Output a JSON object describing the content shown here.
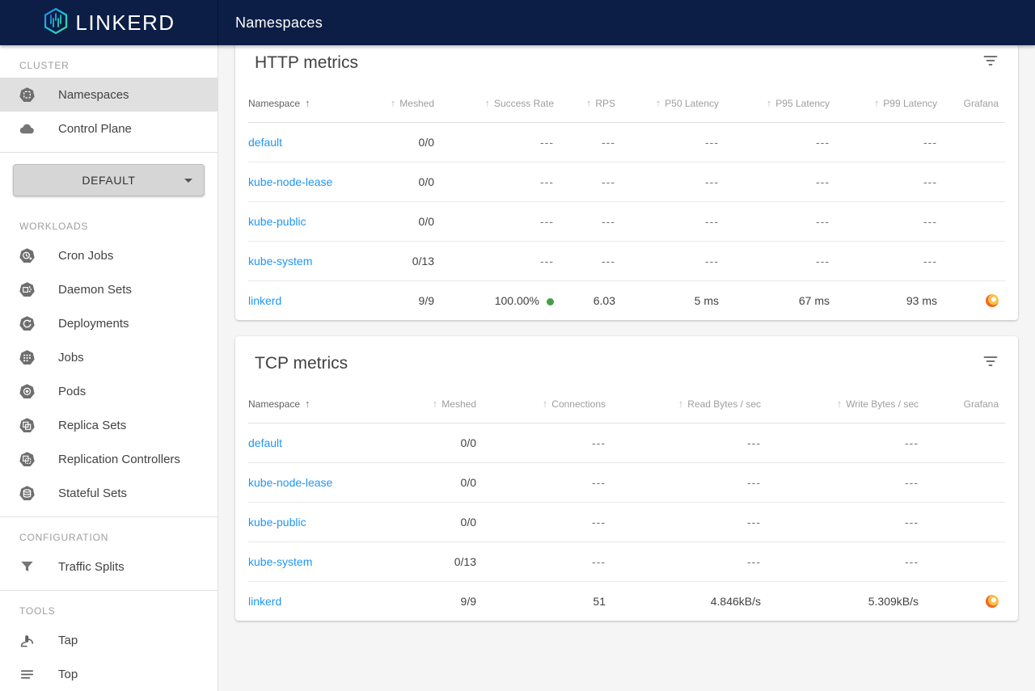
{
  "brand": {
    "name": "LINKERD",
    "logo_icon": "linkerd-logo-icon"
  },
  "navbar": {
    "title": "Namespaces"
  },
  "sidebar": {
    "sections": [
      {
        "label": "CLUSTER",
        "items": [
          {
            "label": "Namespaces",
            "icon": "namespaces-icon",
            "selected": true
          },
          {
            "label": "Control Plane",
            "icon": "control-plane-icon",
            "selected": false
          }
        ]
      },
      {
        "label": "WORKLOADS",
        "items": [
          {
            "label": "Cron Jobs",
            "icon": "cron-jobs-icon",
            "selected": false
          },
          {
            "label": "Daemon Sets",
            "icon": "daemon-sets-icon",
            "selected": false
          },
          {
            "label": "Deployments",
            "icon": "deployments-icon",
            "selected": false
          },
          {
            "label": "Jobs",
            "icon": "jobs-icon",
            "selected": false
          },
          {
            "label": "Pods",
            "icon": "pods-icon",
            "selected": false
          },
          {
            "label": "Replica Sets",
            "icon": "replica-sets-icon",
            "selected": false
          },
          {
            "label": "Replication Controllers",
            "icon": "replication-controllers-icon",
            "selected": false
          },
          {
            "label": "Stateful Sets",
            "icon": "stateful-sets-icon",
            "selected": false
          }
        ]
      },
      {
        "label": "CONFIGURATION",
        "items": [
          {
            "label": "Traffic Splits",
            "icon": "traffic-splits-icon",
            "selected": false
          }
        ]
      },
      {
        "label": "TOOLS",
        "items": [
          {
            "label": "Tap",
            "icon": "tap-icon",
            "selected": false
          },
          {
            "label": "Top",
            "icon": "top-icon",
            "selected": false
          }
        ]
      }
    ],
    "namespace_selector": {
      "value": "DEFAULT"
    }
  },
  "tables": [
    {
      "id": "http",
      "title": "HTTP metrics",
      "columns": [
        {
          "key": "namespace",
          "label": "Namespace",
          "align": "left",
          "type": "link",
          "sorted": "asc"
        },
        {
          "key": "meshed",
          "label": "Meshed",
          "align": "right",
          "sortable": true
        },
        {
          "key": "success_rate",
          "label": "Success Rate",
          "align": "right",
          "sortable": true,
          "dot": true
        },
        {
          "key": "rps",
          "label": "RPS",
          "align": "right",
          "sortable": true
        },
        {
          "key": "p50",
          "label": "P50 Latency",
          "align": "right",
          "sortable": true
        },
        {
          "key": "p95",
          "label": "P95 Latency",
          "align": "right",
          "sortable": true
        },
        {
          "key": "p99",
          "label": "P99 Latency",
          "align": "right",
          "sortable": true
        },
        {
          "key": "grafana",
          "label": "Grafana",
          "align": "right",
          "type": "grafana"
        }
      ],
      "rows": [
        {
          "namespace": "default",
          "meshed": "0/0",
          "success_rate": "---",
          "rps": "---",
          "p50": "---",
          "p95": "---",
          "p99": "---",
          "grafana": false,
          "success_dot": false
        },
        {
          "namespace": "kube-node-lease",
          "meshed": "0/0",
          "success_rate": "---",
          "rps": "---",
          "p50": "---",
          "p95": "---",
          "p99": "---",
          "grafana": false,
          "success_dot": false
        },
        {
          "namespace": "kube-public",
          "meshed": "0/0",
          "success_rate": "---",
          "rps": "---",
          "p50": "---",
          "p95": "---",
          "p99": "---",
          "grafana": false,
          "success_dot": false
        },
        {
          "namespace": "kube-system",
          "meshed": "0/13",
          "success_rate": "---",
          "rps": "---",
          "p50": "---",
          "p95": "---",
          "p99": "---",
          "grafana": false,
          "success_dot": false
        },
        {
          "namespace": "linkerd",
          "meshed": "9/9",
          "success_rate": "100.00%",
          "rps": "6.03",
          "p50": "5 ms",
          "p95": "67 ms",
          "p99": "93 ms",
          "grafana": true,
          "success_dot": true
        }
      ]
    },
    {
      "id": "tcp",
      "title": "TCP metrics",
      "columns": [
        {
          "key": "namespace",
          "label": "Namespace",
          "align": "left",
          "type": "link",
          "sorted": "asc"
        },
        {
          "key": "meshed",
          "label": "Meshed",
          "align": "right",
          "sortable": true
        },
        {
          "key": "connections",
          "label": "Connections",
          "align": "right",
          "sortable": true
        },
        {
          "key": "read_bytes",
          "label": "Read Bytes / sec",
          "align": "right",
          "sortable": true
        },
        {
          "key": "write_bytes",
          "label": "Write Bytes / sec",
          "align": "right",
          "sortable": true
        },
        {
          "key": "grafana",
          "label": "Grafana",
          "align": "right",
          "type": "grafana"
        }
      ],
      "rows": [
        {
          "namespace": "default",
          "meshed": "0/0",
          "connections": "---",
          "read_bytes": "---",
          "write_bytes": "---",
          "grafana": false
        },
        {
          "namespace": "kube-node-lease",
          "meshed": "0/0",
          "connections": "---",
          "read_bytes": "---",
          "write_bytes": "---",
          "grafana": false
        },
        {
          "namespace": "kube-public",
          "meshed": "0/0",
          "connections": "---",
          "read_bytes": "---",
          "write_bytes": "---",
          "grafana": false
        },
        {
          "namespace": "kube-system",
          "meshed": "0/13",
          "connections": "---",
          "read_bytes": "---",
          "write_bytes": "---",
          "grafana": false
        },
        {
          "namespace": "linkerd",
          "meshed": "9/9",
          "connections": "51",
          "read_bytes": "4.846kB/s",
          "write_bytes": "5.309kB/s",
          "grafana": true
        }
      ]
    }
  ],
  "colors": {
    "appbar_navy": "#0c1e45",
    "link_blue": "#2196f3",
    "success_green": "#43a047",
    "grafana_orange": "#ef6820",
    "selected_gray": "#e0e0e0"
  }
}
